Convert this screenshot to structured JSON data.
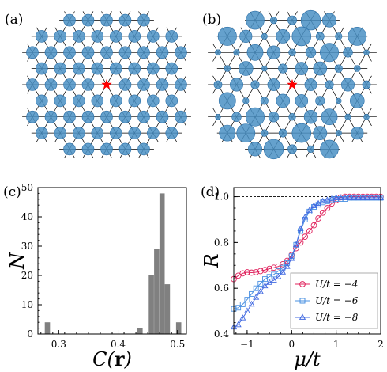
{
  "panels": {
    "a": {
      "label": "(a)",
      "site_marker_color": "#4a90c4",
      "impurity_marker": "star",
      "impurity_color": "#ff0000",
      "sizes_uniform": true
    },
    "b": {
      "label": "(b)",
      "site_marker_color": "#4a90c4",
      "impurity_marker": "star",
      "impurity_color": "#ff0000",
      "sizes_uniform": false
    }
  },
  "chart_data": [
    {
      "type": "bar",
      "panel_label": "(c)",
      "xlabel": "C(r)",
      "ylabel": "N",
      "xlim": [
        0.265,
        0.515
      ],
      "ylim": [
        0,
        50
      ],
      "xticks": [
        0.3,
        0.4,
        0.5
      ],
      "yticks": [
        0,
        10,
        20,
        30,
        40,
        50
      ],
      "bar_width": 0.0088,
      "color": "#808080",
      "bins": [
        {
          "x": 0.281,
          "value": 4
        },
        {
          "x": 0.437,
          "value": 2
        },
        {
          "x": 0.456,
          "value": 20
        },
        {
          "x": 0.465,
          "value": 29
        },
        {
          "x": 0.474,
          "value": 48
        },
        {
          "x": 0.483,
          "value": 17
        },
        {
          "x": 0.502,
          "value": 4
        }
      ]
    },
    {
      "type": "line",
      "panel_label": "(d)",
      "xlabel": "μ/t",
      "ylabel": "R",
      "xlim": [
        -1.3,
        2.0
      ],
      "ylim": [
        0.4,
        1.04
      ],
      "xticks": [
        -1,
        0,
        1,
        2
      ],
      "yticks": [
        0.4,
        0.6,
        0.8,
        1.0
      ],
      "reference_line": {
        "y": 1.0,
        "style": "dashed",
        "color": "#000000"
      },
      "legend_position": "lower-right",
      "series": [
        {
          "name": "U/t = −4",
          "color": "#e0245e",
          "marker": "circle",
          "x": [
            -1.3,
            -1.2,
            -1.1,
            -1.0,
            -0.9,
            -0.8,
            -0.7,
            -0.6,
            -0.5,
            -0.4,
            -0.3,
            -0.2,
            -0.1,
            0.0,
            0.1,
            0.2,
            0.3,
            0.4,
            0.5,
            0.6,
            0.7,
            0.8,
            0.9,
            1.0,
            1.1,
            1.2,
            1.3,
            1.4,
            1.5,
            1.6,
            1.7,
            1.8,
            1.9,
            2.0
          ],
          "values": [
            0.64,
            0.655,
            0.665,
            0.67,
            0.668,
            0.67,
            0.675,
            0.68,
            0.685,
            0.69,
            0.695,
            0.705,
            0.72,
            0.745,
            0.775,
            0.8,
            0.825,
            0.85,
            0.875,
            0.905,
            0.93,
            0.95,
            0.97,
            0.985,
            0.997,
            1.0,
            1.0,
            1.0,
            1.0,
            1.0,
            1.0,
            1.0,
            1.0,
            1.0
          ]
        },
        {
          "name": "U/t = −6",
          "color": "#4a90e2",
          "marker": "square",
          "x": [
            -1.3,
            -1.2,
            -1.1,
            -1.0,
            -0.9,
            -0.8,
            -0.7,
            -0.6,
            -0.5,
            -0.4,
            -0.3,
            -0.2,
            -0.1,
            0.0,
            0.1,
            0.2,
            0.3,
            0.4,
            0.5,
            0.6,
            0.7,
            0.8,
            0.9,
            1.0,
            1.1,
            1.2,
            1.3,
            1.4,
            1.5,
            1.6,
            1.7,
            1.8,
            1.9,
            2.0
          ],
          "values": [
            0.51,
            0.515,
            0.53,
            0.55,
            0.575,
            0.6,
            0.62,
            0.64,
            0.65,
            0.66,
            0.675,
            0.69,
            0.71,
            0.74,
            0.79,
            0.85,
            0.9,
            0.935,
            0.955,
            0.965,
            0.975,
            0.98,
            0.985,
            0.99,
            0.99,
            0.99,
            0.995,
            0.995,
            0.995,
            0.995,
            0.995,
            0.995,
            0.995,
            0.995
          ]
        },
        {
          "name": "U/t = −8",
          "color": "#4169e1",
          "marker": "triangle",
          "x": [
            -1.3,
            -1.2,
            -1.1,
            -1.0,
            -0.9,
            -0.8,
            -0.7,
            -0.6,
            -0.5,
            -0.4,
            -0.3,
            -0.2,
            -0.1,
            0.0,
            0.1,
            0.2,
            0.3,
            0.4,
            0.5,
            0.6,
            0.7,
            0.8,
            0.9,
            1.0,
            1.1,
            1.2,
            1.3,
            1.4,
            1.5,
            1.6,
            1.7,
            1.8,
            1.9,
            2.0
          ],
          "values": [
            0.43,
            0.44,
            0.47,
            0.5,
            0.53,
            0.56,
            0.585,
            0.61,
            0.625,
            0.635,
            0.65,
            0.67,
            0.695,
            0.73,
            0.79,
            0.86,
            0.91,
            0.94,
            0.96,
            0.97,
            0.98,
            0.985,
            0.99,
            0.995,
            0.995,
            0.995,
            0.995,
            0.995,
            0.995,
            0.995,
            0.995,
            0.995,
            0.995,
            0.995
          ]
        }
      ]
    }
  ]
}
